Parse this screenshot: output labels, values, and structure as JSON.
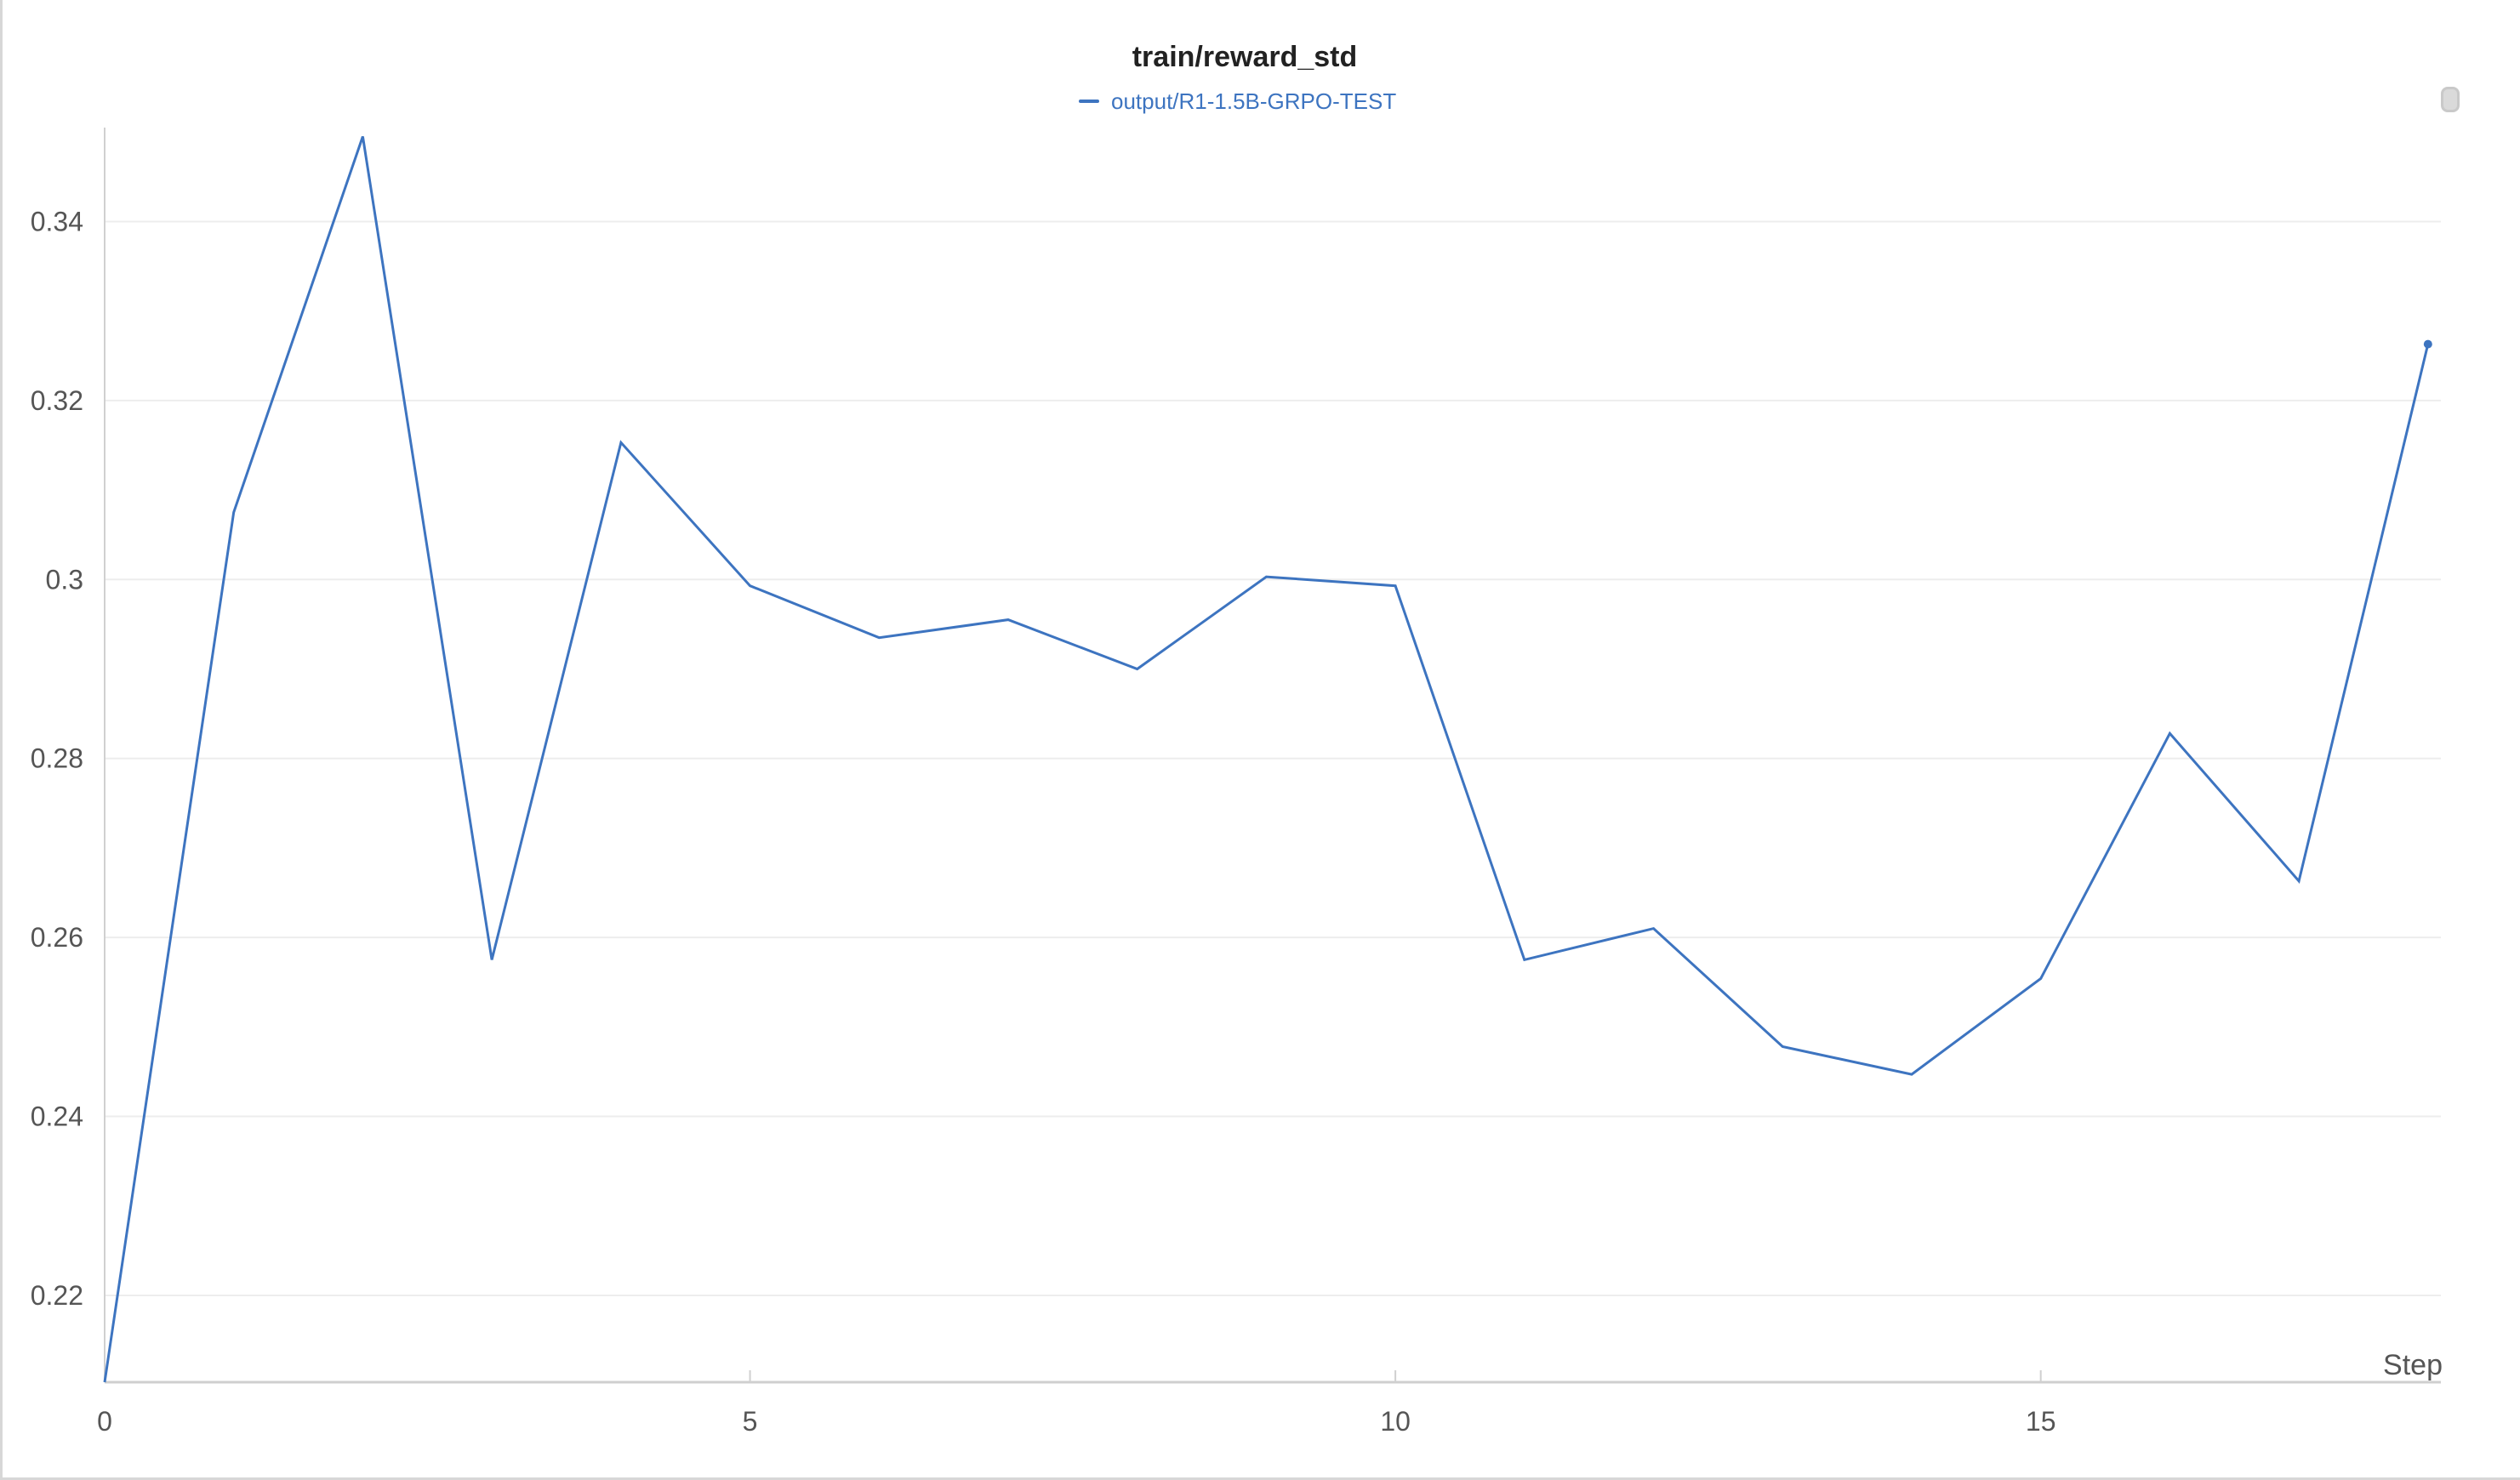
{
  "chart_data": {
    "type": "line",
    "title": "train/reward_std",
    "xlabel": "Step",
    "ylabel": "",
    "xlim": [
      0,
      18.1
    ],
    "ylim": [
      0.2103,
      0.3505
    ],
    "x_ticks": [
      0,
      5,
      10,
      15
    ],
    "y_ticks": [
      0.22,
      0.24,
      0.26,
      0.28,
      0.3,
      0.32,
      0.34
    ],
    "y_tick_labels": [
      "0.22",
      "0.24",
      "0.26",
      "0.28",
      "0.3",
      "0.32",
      "0.34"
    ],
    "grid": true,
    "legend_position": "top-center",
    "series": [
      {
        "name": "output/R1-1.5B-GRPO-TEST",
        "color": "#3d74c0",
        "x": [
          0,
          1,
          2,
          3,
          4,
          5,
          6,
          7,
          8,
          9,
          10,
          11,
          12,
          13,
          14,
          15,
          16,
          17,
          18
        ],
        "y": [
          0.2103,
          0.3075,
          0.3495,
          0.2575,
          0.3153,
          0.2993,
          0.2935,
          0.2955,
          0.29,
          0.3003,
          0.2993,
          0.2575,
          0.261,
          0.2478,
          0.2447,
          0.2554,
          0.2828,
          0.2663,
          0.3263
        ]
      }
    ]
  },
  "legend": {
    "label": "output/R1-1.5B-GRPO-TEST",
    "color": "#3d74c0"
  }
}
